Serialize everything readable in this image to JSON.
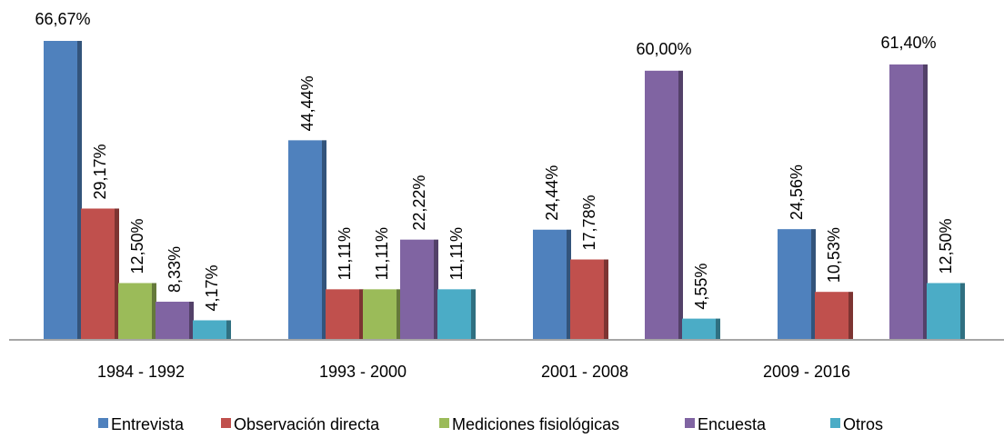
{
  "chart_data": {
    "type": "bar",
    "categories": [
      "1984 - 1992",
      "1993 - 2000",
      "2001 - 2008",
      "2009 - 2016"
    ],
    "series": [
      {
        "name": "Entrevista",
        "color": "#4f81bd",
        "values": [
          66.67,
          44.44,
          24.44,
          24.56
        ],
        "value_labels": [
          "66,67%",
          "44,44%",
          "24,44%",
          "24,56%"
        ]
      },
      {
        "name": "Observación directa",
        "color": "#c0504d",
        "values": [
          29.17,
          11.11,
          17.78,
          10.53
        ],
        "value_labels": [
          "29,17%",
          "11,11%",
          "17,78%",
          "10,53%"
        ]
      },
      {
        "name": "Mediciones fisiológicas",
        "color": "#9bbb59",
        "values": [
          12.5,
          11.11,
          null,
          null
        ],
        "value_labels": [
          "12,50%",
          "11,11%",
          null,
          null
        ]
      },
      {
        "name": "Encuesta",
        "color": "#8064a2",
        "values": [
          8.33,
          22.22,
          60.0,
          61.4
        ],
        "value_labels": [
          "8,33%",
          "22,22%",
          "60,00%",
          "61,40%"
        ]
      },
      {
        "name": "Otros",
        "color": "#4bacc6",
        "values": [
          4.17,
          11.11,
          4.55,
          12.5
        ],
        "value_labels": [
          "4,17%",
          "11,11%",
          "4,55%",
          "12,50%"
        ]
      }
    ]
  }
}
